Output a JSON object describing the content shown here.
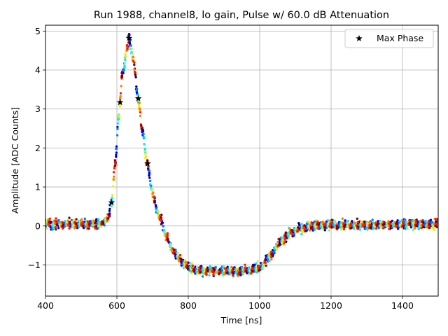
{
  "chart_data": {
    "type": "scatter",
    "title": "Run 1988, channel8, lo gain, Pulse w/ 60.0 dB Attenuation",
    "xlabel": "Time [ns]",
    "ylabel": "Amplitude [ADC Counts]",
    "xlim": [
      400,
      1500
    ],
    "ylim": [
      -1.8,
      5.15
    ],
    "xticks": [
      400,
      600,
      800,
      1000,
      1200,
      1400
    ],
    "xtick_labels": [
      "400",
      "600",
      "800",
      "1000",
      "1200",
      "1400"
    ],
    "yticks": [
      -1,
      0,
      1,
      2,
      3,
      4,
      5
    ],
    "ytick_labels": [
      "−1",
      "0",
      "1",
      "2",
      "3",
      "4",
      "5"
    ],
    "grid": true,
    "legend": {
      "position": "top-right",
      "entries": [
        "Max Phase"
      ]
    },
    "colormap": [
      "#00007f",
      "#0000ff",
      "#007fff",
      "#00e5ff",
      "#7fff7f",
      "#ffe500",
      "#ff7f00",
      "#ff1a00",
      "#7f0000"
    ],
    "pulse_model": {
      "description": "Pulse waveform sampled at 16 phase offsets; dots colored by phase",
      "baseline": 0.05,
      "points_per_trace": 60,
      "phases": 16,
      "noise_amplitude": 0.13,
      "shape": [
        [
          400,
          0.05
        ],
        [
          560,
          0.05
        ],
        [
          575,
          0.2
        ],
        [
          585,
          0.6
        ],
        [
          595,
          1.6
        ],
        [
          605,
          2.8
        ],
        [
          615,
          3.9
        ],
        [
          630,
          4.6
        ],
        [
          635,
          4.82
        ],
        [
          645,
          4.3
        ],
        [
          660,
          3.25
        ],
        [
          672,
          2.4
        ],
        [
          685,
          1.6
        ],
        [
          700,
          0.8
        ],
        [
          720,
          0.2
        ],
        [
          740,
          -0.3
        ],
        [
          760,
          -0.7
        ],
        [
          790,
          -1.0
        ],
        [
          830,
          -1.15
        ],
        [
          900,
          -1.15
        ],
        [
          970,
          -1.15
        ],
        [
          1000,
          -1.05
        ],
        [
          1030,
          -0.75
        ],
        [
          1060,
          -0.4
        ],
        [
          1090,
          -0.15
        ],
        [
          1120,
          -0.05
        ],
        [
          1160,
          0.02
        ],
        [
          1500,
          0.05
        ]
      ]
    },
    "max_phase": {
      "name": "Max Phase",
      "x": [
        585,
        609,
        634,
        660,
        686
      ],
      "y": [
        0.6,
        3.17,
        4.82,
        3.27,
        1.6
      ]
    }
  }
}
